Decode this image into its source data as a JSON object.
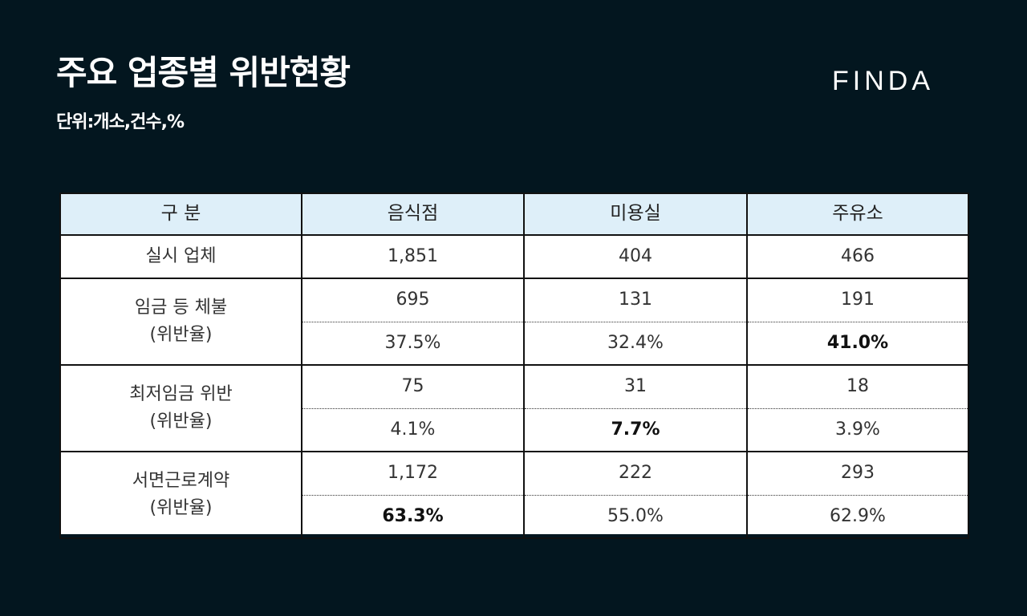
{
  "header": {
    "title": "주요 업종별 위반현황",
    "subtitle": "단위:개소,건수,%",
    "logo": "FINDA"
  },
  "table": {
    "columns": [
      "구 분",
      "음식점",
      "미용실",
      "주유소"
    ],
    "sites": {
      "label": "실시 업체",
      "values": [
        "1,851",
        "404",
        "466"
      ]
    },
    "wage_arrears": {
      "label": "임금 등 체불",
      "sublabel": "(위반율)",
      "counts": [
        "695",
        "131",
        "191"
      ],
      "rates": [
        "37.5%",
        "32.4%",
        "41.0%"
      ]
    },
    "min_wage": {
      "label": "최저임금 위반",
      "sublabel": "(위반율)",
      "counts": [
        "75",
        "31",
        "18"
      ],
      "rates": [
        "4.1%",
        "7.7%",
        "3.9%"
      ]
    },
    "written_contract": {
      "label": "서면근로계약",
      "sublabel": "(위반율)",
      "counts": [
        "1,172",
        "222",
        "293"
      ],
      "rates": [
        "63.3%",
        "55.0%",
        "62.9%"
      ]
    }
  },
  "colors": {
    "background": "#03161f",
    "header_row": "#deeff9"
  }
}
